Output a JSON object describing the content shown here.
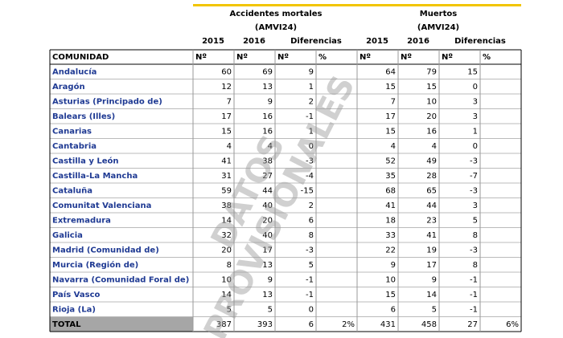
{
  "header": {
    "groups": [
      {
        "title": "Accidentes mortales",
        "subtitle": "(AMVI24)"
      },
      {
        "title": "Muertos",
        "subtitle": "(AMVI24)"
      }
    ],
    "years": [
      "2015",
      "2016",
      "Diferencias",
      "2015",
      "2016",
      "Diferencias"
    ]
  },
  "watermark": [
    "DATOS",
    "PROVISIONALES"
  ],
  "table": {
    "columns": [
      "COMUNIDAD",
      "Nº",
      "Nº",
      "Nº",
      "%",
      "Nº",
      "Nº",
      "Nº",
      "%"
    ],
    "rows": [
      [
        "Andalucía",
        "60",
        "69",
        "9",
        "",
        "64",
        "79",
        "15",
        ""
      ],
      [
        "Aragón",
        "12",
        "13",
        "1",
        "",
        "15",
        "15",
        "0",
        ""
      ],
      [
        "Asturias (Principado de)",
        "7",
        "9",
        "2",
        "",
        "7",
        "10",
        "3",
        ""
      ],
      [
        "Balears (Illes)",
        "17",
        "16",
        "-1",
        "",
        "17",
        "20",
        "3",
        ""
      ],
      [
        "Canarias",
        "15",
        "16",
        "1",
        "",
        "15",
        "16",
        "1",
        ""
      ],
      [
        "Cantabria",
        "4",
        "4",
        "0",
        "",
        "4",
        "4",
        "0",
        ""
      ],
      [
        "Castilla y León",
        "41",
        "38",
        "-3",
        "",
        "52",
        "49",
        "-3",
        ""
      ],
      [
        "Castilla-La Mancha",
        "31",
        "27",
        "-4",
        "",
        "35",
        "28",
        "-7",
        ""
      ],
      [
        "Cataluña",
        "59",
        "44",
        "-15",
        "",
        "68",
        "65",
        "-3",
        ""
      ],
      [
        "Comunitat Valenciana",
        "38",
        "40",
        "2",
        "",
        "41",
        "44",
        "3",
        ""
      ],
      [
        "Extremadura",
        "14",
        "20",
        "6",
        "",
        "18",
        "23",
        "5",
        ""
      ],
      [
        "Galicia",
        "32",
        "40",
        "8",
        "",
        "33",
        "41",
        "8",
        ""
      ],
      [
        "Madrid (Comunidad de)",
        "20",
        "17",
        "-3",
        "",
        "22",
        "19",
        "-3",
        ""
      ],
      [
        "Murcia (Región de)",
        "8",
        "13",
        "5",
        "",
        "9",
        "17",
        "8",
        ""
      ],
      [
        "Navarra (Comunidad Foral de)",
        "10",
        "9",
        "-1",
        "",
        "10",
        "9",
        "-1",
        ""
      ],
      [
        "País Vasco",
        "14",
        "13",
        "-1",
        "",
        "15",
        "14",
        "-1",
        ""
      ],
      [
        "Rioja (La)",
        "5",
        "5",
        "0",
        "",
        "6",
        "5",
        "-1",
        ""
      ],
      [
        "TOTAL",
        "387",
        "393",
        "6",
        "2%",
        "431",
        "458",
        "27",
        "6%"
      ]
    ]
  }
}
